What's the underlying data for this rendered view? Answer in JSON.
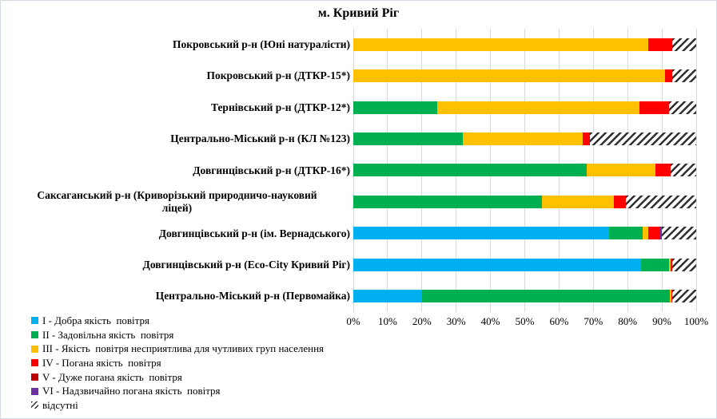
{
  "chart_data": {
    "type": "bar",
    "orientation": "horizontal",
    "stacked": "100%",
    "title": "м. Кривий Ріг",
    "grid": "vertical gridlines every 10%",
    "legend_position": "bottom-left",
    "x_axis": {
      "range": [
        0,
        100
      ],
      "ticks": [
        "0%",
        "10%",
        "20%",
        "30%",
        "40%",
        "50%",
        "60%",
        "70%",
        "80%",
        "90%",
        "100%"
      ]
    },
    "categories": [
      "Покровський р-н (Юні натуралісти)",
      "Покровський р-н (ДТКР-15*)",
      "Тернівський р-н (ДТКР-12*)",
      "Центрально-Міський р-н (КЛ №123)",
      "Довгинцівський р-н (ДТКР-16*)",
      "Саксаганський р-н (Криворізький природничо-науковий\nліцей)",
      "Довгинцівський р-н (ім. Вернадського)",
      "Довгинцівський р-н (Eco-City Кривий Ріг)",
      "Центрально-Міський р-н (Первомайка)"
    ],
    "series": [
      {
        "key": "I",
        "name": "I - Добра якість  повітря",
        "color": "#00B0F0",
        "values": [
          0,
          0,
          0,
          0,
          0,
          0,
          74.5,
          84,
          20
        ]
      },
      {
        "key": "II",
        "name": "II - Задовільна якість  повітря",
        "color": "#00B050",
        "values": [
          0,
          0,
          24.5,
          32,
          68,
          55,
          10,
          8,
          72.3
        ]
      },
      {
        "key": "III",
        "name": "III - Якість  повітря несприятлива для чутливих груп населення",
        "color": "#FFC000",
        "values": [
          86,
          91,
          59,
          35,
          20,
          21,
          1.5,
          0.5,
          0.4
        ]
      },
      {
        "key": "IV",
        "name": "IV - Погана якість  повітря",
        "color": "#FF0000",
        "values": [
          7,
          2,
          8.5,
          2,
          4.5,
          3.5,
          3.5,
          0.5,
          0.3
        ]
      },
      {
        "key": "V",
        "name": "V - Дуже погана якість  повітря",
        "color": "#C00000",
        "values": [
          0,
          0,
          0,
          0,
          0,
          0,
          0,
          0,
          0
        ]
      },
      {
        "key": "VI",
        "name": "VI - Надзвичайно погана якість  повітря",
        "color": "#7030A0",
        "values": [
          0,
          0,
          0,
          0,
          0,
          0,
          0.5,
          0,
          0
        ]
      },
      {
        "key": "absent",
        "name": "відсутні",
        "pattern": "diagonal-hatch",
        "color": "#303030",
        "values": [
          7,
          7,
          8,
          31,
          7.5,
          20.5,
          10,
          7,
          7
        ]
      }
    ],
    "colors": {
      "gridline": "#D9D9D9",
      "chart_border": "#D4DAE4",
      "text": "#000000"
    }
  }
}
